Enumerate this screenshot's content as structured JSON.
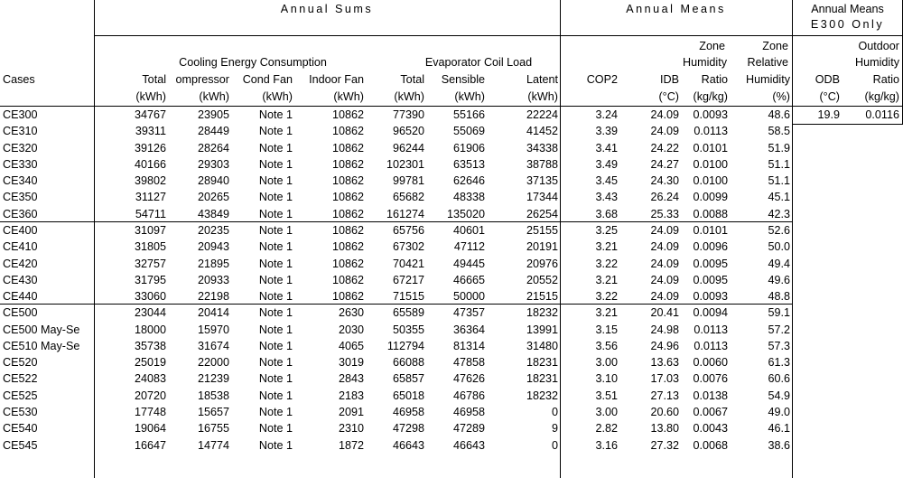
{
  "group_headers": {
    "sums": "Annual Sums",
    "means": "Annual Means",
    "e300_line1": "Annual Means",
    "e300_line2": "E300 Only"
  },
  "sub_headers": {
    "cooling": "Cooling Energy Consumption",
    "evap": "Evaporator Coil Load",
    "zone_hum": "Zone",
    "zone_rel": "Zone",
    "outdoor": "Outdoor"
  },
  "col_headers": {
    "cases": "Cases",
    "row3": [
      "Total",
      "ompressor",
      "Cond Fan",
      "Indoor Fan",
      "Total",
      "Sensible",
      "Latent",
      "COP2",
      "IDB",
      "Humidity",
      "Humidity",
      "ODB",
      "Humidity"
    ],
    "row2_extra": {
      "zone_hum": "Humidity",
      "zone_rel": "Relative",
      "outdoor": "Humidity"
    },
    "row3_override": {
      "zone_hum": "Ratio",
      "zone_rel": "Humidity",
      "outdoor": "Ratio"
    },
    "units": [
      "(kWh)",
      "(kWh)",
      "(kWh)",
      "(kWh)",
      "(kWh)",
      "(kWh)",
      "(kWh)",
      "",
      "(°C)",
      "(kg/kg)",
      "(%)",
      "(°C)",
      "(kg/kg)"
    ]
  },
  "rows": [
    {
      "case": "CE300",
      "v": [
        "34767",
        "23905",
        "Note 1",
        "10862",
        "77390",
        "55166",
        "22224",
        "3.24",
        "24.09",
        "0.0093",
        "48.6"
      ],
      "odb": "19.9",
      "ohr": "0.0116"
    },
    {
      "case": "CE310",
      "v": [
        "39311",
        "28449",
        "Note 1",
        "10862",
        "96520",
        "55069",
        "41452",
        "3.39",
        "24.09",
        "0.0113",
        "58.5"
      ]
    },
    {
      "case": "CE320",
      "v": [
        "39126",
        "28264",
        "Note 1",
        "10862",
        "96244",
        "61906",
        "34338",
        "3.41",
        "24.22",
        "0.0101",
        "51.9"
      ]
    },
    {
      "case": "CE330",
      "v": [
        "40166",
        "29303",
        "Note 1",
        "10862",
        "102301",
        "63513",
        "38788",
        "3.49",
        "24.27",
        "0.0100",
        "51.1"
      ]
    },
    {
      "case": "CE340",
      "v": [
        "39802",
        "28940",
        "Note 1",
        "10862",
        "99781",
        "62646",
        "37135",
        "3.45",
        "24.30",
        "0.0100",
        "51.1"
      ]
    },
    {
      "case": "CE350",
      "v": [
        "31127",
        "20265",
        "Note 1",
        "10862",
        "65682",
        "48338",
        "17344",
        "3.43",
        "26.24",
        "0.0099",
        "45.1"
      ]
    },
    {
      "case": "CE360",
      "v": [
        "54711",
        "43849",
        "Note 1",
        "10862",
        "161274",
        "135020",
        "26254",
        "3.68",
        "25.33",
        "0.0088",
        "42.3"
      ]
    },
    {
      "case": "CE400",
      "v": [
        "31097",
        "20235",
        "Note 1",
        "10862",
        "65756",
        "40601",
        "25155",
        "3.25",
        "24.09",
        "0.0101",
        "52.6"
      ]
    },
    {
      "case": "CE410",
      "v": [
        "31805",
        "20943",
        "Note 1",
        "10862",
        "67302",
        "47112",
        "20191",
        "3.21",
        "24.09",
        "0.0096",
        "50.0"
      ]
    },
    {
      "case": "CE420",
      "v": [
        "32757",
        "21895",
        "Note 1",
        "10862",
        "70421",
        "49445",
        "20976",
        "3.22",
        "24.09",
        "0.0095",
        "49.4"
      ]
    },
    {
      "case": "CE430",
      "v": [
        "31795",
        "20933",
        "Note 1",
        "10862",
        "67217",
        "46665",
        "20552",
        "3.21",
        "24.09",
        "0.0095",
        "49.6"
      ]
    },
    {
      "case": "CE440",
      "v": [
        "33060",
        "22198",
        "Note 1",
        "10862",
        "71515",
        "50000",
        "21515",
        "3.22",
        "24.09",
        "0.0093",
        "48.8"
      ]
    },
    {
      "case": "CE500",
      "v": [
        "23044",
        "20414",
        "Note 1",
        "2630",
        "65589",
        "47357",
        "18232",
        "3.21",
        "20.41",
        "0.0094",
        "59.1"
      ]
    },
    {
      "case": "CE500 May-Se",
      "v": [
        "18000",
        "15970",
        "Note 1",
        "2030",
        "50355",
        "36364",
        "13991",
        "3.15",
        "24.98",
        "0.0113",
        "57.2"
      ]
    },
    {
      "case": "CE510 May-Se",
      "v": [
        "35738",
        "31674",
        "Note 1",
        "4065",
        "112794",
        "81314",
        "31480",
        "3.56",
        "24.96",
        "0.0113",
        "57.3"
      ]
    },
    {
      "case": "CE520",
      "v": [
        "25019",
        "22000",
        "Note 1",
        "3019",
        "66088",
        "47858",
        "18231",
        "3.00",
        "13.63",
        "0.0060",
        "61.3"
      ]
    },
    {
      "case": "CE522",
      "v": [
        "24083",
        "21239",
        "Note 1",
        "2843",
        "65857",
        "47626",
        "18231",
        "3.10",
        "17.03",
        "0.0076",
        "60.6"
      ]
    },
    {
      "case": "CE525",
      "v": [
        "20720",
        "18538",
        "Note 1",
        "2183",
        "65018",
        "46786",
        "18232",
        "3.51",
        "27.13",
        "0.0138",
        "54.9"
      ]
    },
    {
      "case": "CE530",
      "v": [
        "17748",
        "15657",
        "Note 1",
        "2091",
        "46958",
        "46958",
        "0",
        "3.00",
        "20.60",
        "0.0067",
        "49.0"
      ]
    },
    {
      "case": "CE540",
      "v": [
        "19064",
        "16755",
        "Note 1",
        "2310",
        "47298",
        "47289",
        "9",
        "2.82",
        "13.80",
        "0.0043",
        "46.1"
      ]
    },
    {
      "case": "CE545",
      "v": [
        "16647",
        "14774",
        "Note 1",
        "1872",
        "46643",
        "46643",
        "0",
        "3.16",
        "27.32",
        "0.0068",
        "38.6"
      ]
    }
  ]
}
